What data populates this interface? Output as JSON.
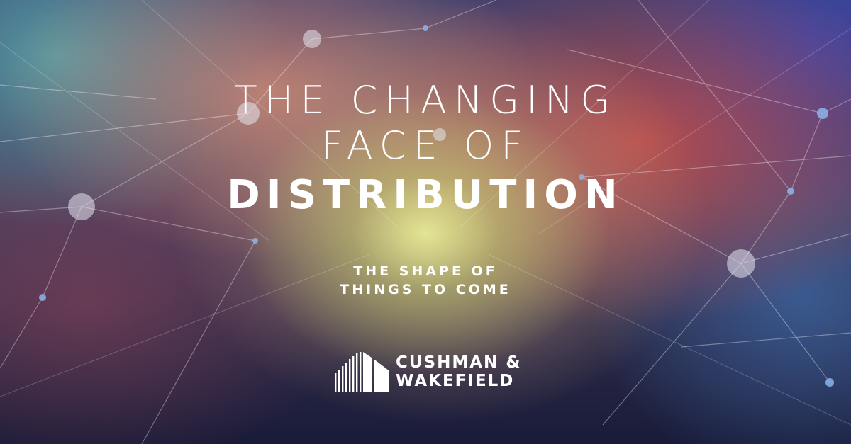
{
  "title": {
    "line1": "THE CHANGING",
    "line2": "FACE OF",
    "line3": "DISTRIBUTION"
  },
  "subtitle": {
    "line1": "THE SHAPE OF",
    "line2": "THINGS TO COME"
  },
  "brand": {
    "line1": "CUSHMAN &",
    "line2": "WAKEFIELD",
    "icon": "building-columns-logo-icon"
  },
  "colors": {
    "text": "#ffffff",
    "center_glow": "#e6eb96",
    "accent_red": "#dc5046",
    "accent_teal": "#5aafaf",
    "accent_blue": "#3c46aa",
    "base": "#1a1f3a"
  }
}
